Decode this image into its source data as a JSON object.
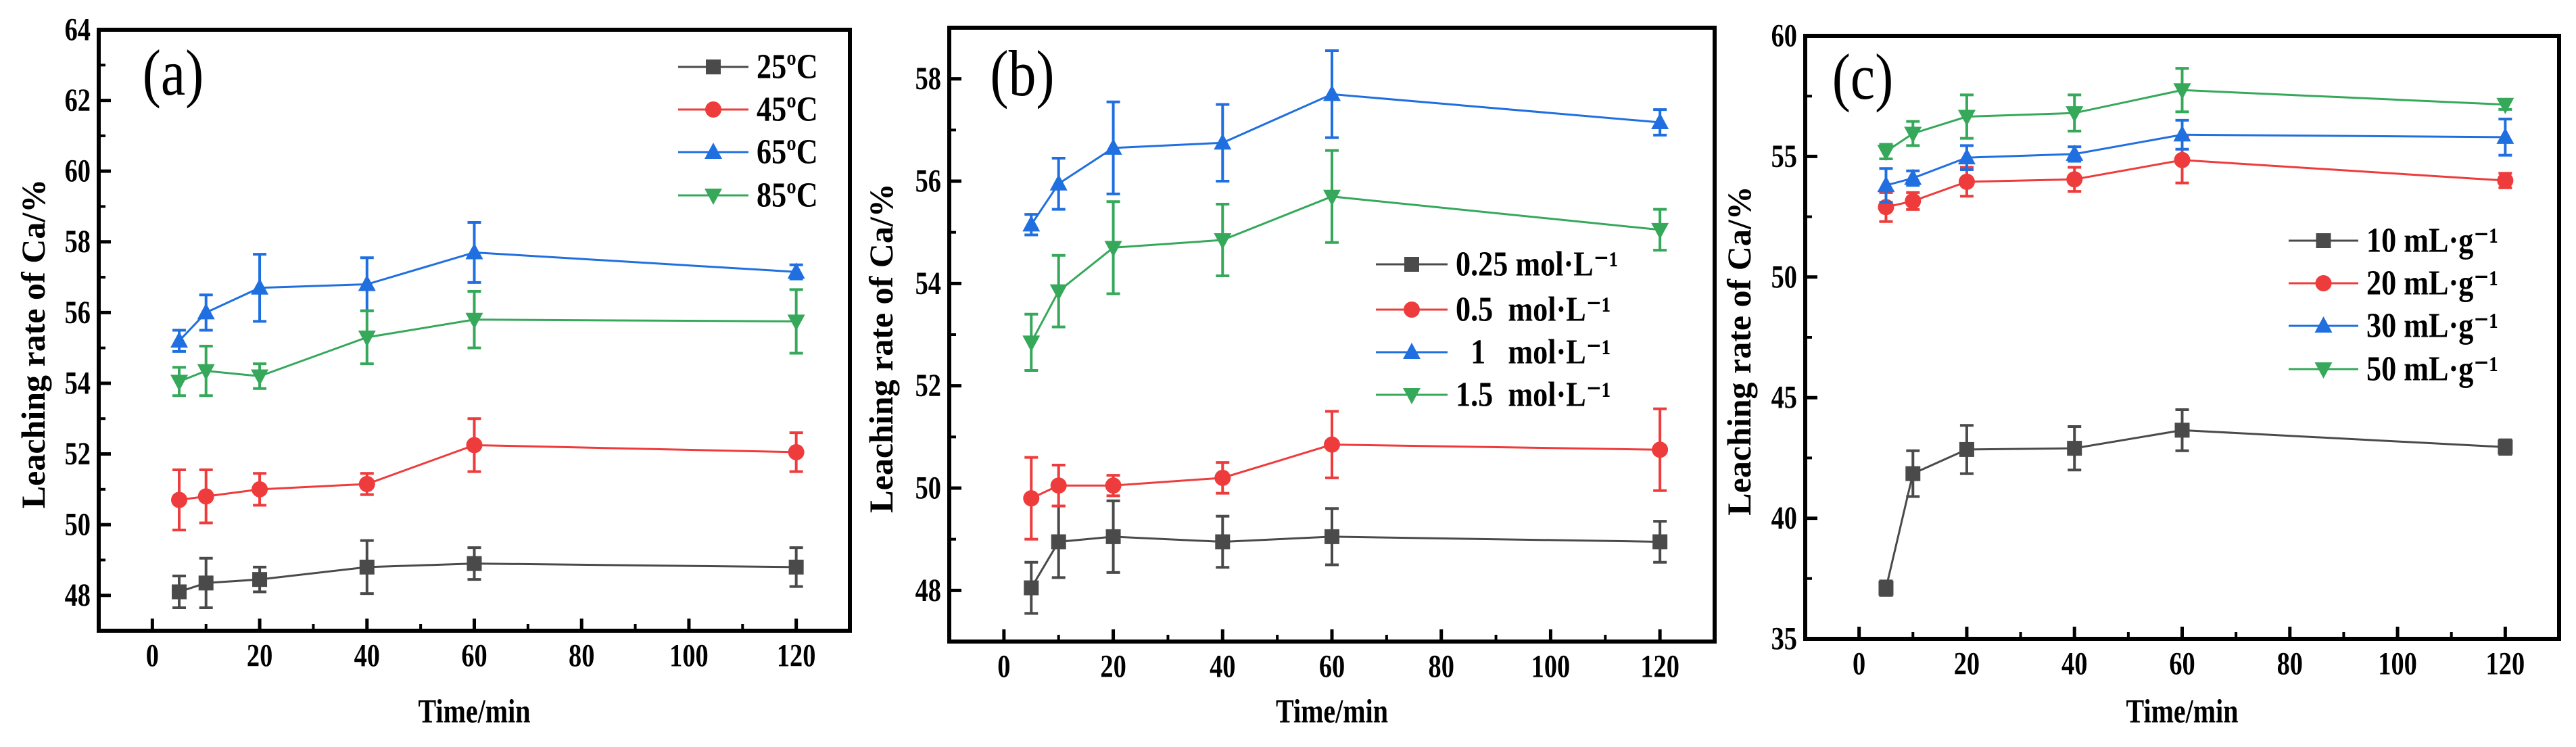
{
  "chart_data": [
    {
      "type": "line",
      "panel_label": "(a)",
      "title": "",
      "xlabel": "Time/min",
      "ylabel": "Leaching rate of Ca/%",
      "xlim": [
        -10,
        130
      ],
      "ylim": [
        47,
        64
      ],
      "xticks": [
        0,
        20,
        40,
        60,
        80,
        100,
        120
      ],
      "yticks": [
        48,
        50,
        52,
        54,
        56,
        58,
        60,
        62,
        64
      ],
      "grid": false,
      "legend_position": "top-right",
      "x": [
        5,
        10,
        20,
        40,
        60,
        120
      ],
      "series": [
        {
          "name": "25ºC",
          "color": "#4a4a4a",
          "marker": "square",
          "values": [
            48.1,
            48.35,
            48.45,
            48.8,
            48.9,
            48.8
          ],
          "errors": [
            0.45,
            0.7,
            0.35,
            0.75,
            0.45,
            0.55
          ]
        },
        {
          "name": "45ºC",
          "color": "#ee3b3b",
          "marker": "circle",
          "values": [
            50.7,
            50.8,
            51.0,
            51.15,
            52.25,
            52.05
          ],
          "errors": [
            0.85,
            0.75,
            0.45,
            0.3,
            0.75,
            0.55
          ]
        },
        {
          "name": "65ºC",
          "color": "#1f6fe0",
          "marker": "triangle-up",
          "values": [
            55.2,
            56.0,
            56.7,
            56.8,
            57.7,
            57.15
          ],
          "errors": [
            0.3,
            0.5,
            0.95,
            0.75,
            0.85,
            0.2
          ]
        },
        {
          "name": "85ºC",
          "color": "#35a85a",
          "marker": "triangle-down",
          "values": [
            54.05,
            54.35,
            54.2,
            55.3,
            55.8,
            55.75
          ],
          "errors": [
            0.4,
            0.7,
            0.35,
            0.75,
            0.8,
            0.9
          ]
        }
      ]
    },
    {
      "type": "line",
      "panel_label": "(b)",
      "title": "",
      "xlabel": "Time/min",
      "ylabel": "Leaching rate of Ca/%",
      "xlim": [
        -10,
        130
      ],
      "ylim": [
        47,
        59
      ],
      "xticks": [
        0,
        20,
        40,
        60,
        80,
        100,
        120
      ],
      "yticks": [
        48,
        50,
        52,
        54,
        56,
        58
      ],
      "grid": false,
      "legend_position": "center-right",
      "x": [
        5,
        10,
        20,
        40,
        60,
        120
      ],
      "series": [
        {
          "name": "0.25 mol·L⁻¹",
          "color": "#4a4a4a",
          "marker": "square",
          "values": [
            48.05,
            48.95,
            49.05,
            48.95,
            49.05,
            48.95
          ],
          "errors": [
            0.5,
            0.7,
            0.7,
            0.5,
            0.55,
            0.4
          ]
        },
        {
          "name": "0.5  mol·L⁻¹",
          "color": "#ee3b3b",
          "marker": "circle",
          "values": [
            49.8,
            50.05,
            50.05,
            50.2,
            50.85,
            50.75
          ],
          "errors": [
            0.8,
            0.4,
            0.2,
            0.3,
            0.65,
            0.8
          ]
        },
        {
          "name": "  1   mol·L⁻¹",
          "color": "#1f6fe0",
          "marker": "triangle-up",
          "values": [
            55.15,
            55.95,
            56.65,
            56.75,
            57.7,
            57.15
          ],
          "errors": [
            0.2,
            0.5,
            0.9,
            0.75,
            0.85,
            0.25
          ]
        },
        {
          "name": "1.5  mol·L⁻¹",
          "color": "#35a85a",
          "marker": "triangle-down",
          "values": [
            52.85,
            53.85,
            54.7,
            54.85,
            55.7,
            55.05
          ],
          "errors": [
            0.55,
            0.7,
            0.9,
            0.7,
            0.9,
            0.4
          ]
        }
      ]
    },
    {
      "type": "line",
      "panel_label": "(c)",
      "title": "",
      "xlabel": "Time/min",
      "ylabel": "Leaching rate of Ca/%",
      "xlim": [
        -10,
        130
      ],
      "ylim": [
        35,
        60
      ],
      "xticks": [
        0,
        20,
        40,
        60,
        80,
        100,
        120
      ],
      "yticks": [
        35,
        40,
        45,
        50,
        55,
        60
      ],
      "grid": false,
      "legend_position": "center-right",
      "x": [
        5,
        10,
        20,
        40,
        60,
        120
      ],
      "series": [
        {
          "name": "10 mL·g⁻¹",
          "color": "#4a4a4a",
          "marker": "square",
          "values": [
            37.1,
            41.85,
            42.85,
            42.9,
            43.65,
            42.95
          ],
          "errors": [
            0.3,
            0.95,
            1.0,
            0.9,
            0.85,
            0.3
          ]
        },
        {
          "name": "20 mL·g⁻¹",
          "color": "#ee3b3b",
          "marker": "circle",
          "values": [
            52.9,
            53.15,
            53.95,
            54.05,
            54.85,
            54.0
          ],
          "errors": [
            0.6,
            0.35,
            0.6,
            0.5,
            0.95,
            0.3
          ]
        },
        {
          "name": "30 mL·g⁻¹",
          "color": "#1f6fe0",
          "marker": "triangle-up",
          "values": [
            53.8,
            54.1,
            54.95,
            55.1,
            55.9,
            55.8
          ],
          "errors": [
            0.7,
            0.3,
            0.5,
            0.3,
            0.6,
            0.75
          ]
        },
        {
          "name": "50 mL·g⁻¹",
          "color": "#35a85a",
          "marker": "triangle-down",
          "values": [
            55.2,
            55.95,
            56.65,
            56.8,
            57.75,
            57.15
          ],
          "errors": [
            0.3,
            0.5,
            0.9,
            0.75,
            0.9,
            0.2
          ]
        }
      ]
    }
  ]
}
